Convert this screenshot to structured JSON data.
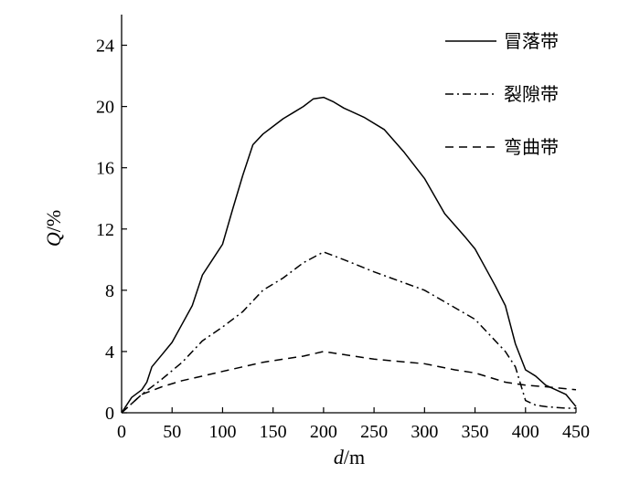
{
  "chart_data": {
    "type": "line",
    "xlabel_symbol": "d",
    "xlabel_unit": "/m",
    "ylabel_symbol": "Q",
    "ylabel_unit": "/%",
    "xlim": [
      0,
      450
    ],
    "ylim": [
      0,
      26
    ],
    "xticks": [
      0,
      50,
      100,
      150,
      200,
      250,
      300,
      350,
      400,
      450
    ],
    "yticks": [
      0,
      4,
      8,
      12,
      16,
      20,
      24
    ],
    "grid": false,
    "legend_position": "top-right",
    "series": [
      {
        "name": "冒落带",
        "style": "solid",
        "x": [
          0,
          10,
          20,
          25,
          30,
          40,
          50,
          60,
          70,
          80,
          90,
          100,
          110,
          120,
          130,
          140,
          150,
          160,
          170,
          180,
          190,
          200,
          210,
          220,
          240,
          260,
          280,
          300,
          320,
          340,
          350,
          360,
          370,
          380,
          390,
          400,
          405,
          410,
          420,
          430,
          440,
          450
        ],
        "y": [
          0,
          1.0,
          1.5,
          2.0,
          3.0,
          3.8,
          4.6,
          5.8,
          7.0,
          9.0,
          10.0,
          11.0,
          13.3,
          15.5,
          17.5,
          18.2,
          18.7,
          19.2,
          19.6,
          20.0,
          20.5,
          20.6,
          20.3,
          19.9,
          19.3,
          18.5,
          17.0,
          15.3,
          13.0,
          11.5,
          10.7,
          9.5,
          8.3,
          7.0,
          4.5,
          2.8,
          2.6,
          2.4,
          1.8,
          1.5,
          1.2,
          0.4
        ]
      },
      {
        "name": "裂隙带",
        "style": "dashdot",
        "x": [
          0,
          20,
          40,
          60,
          80,
          100,
          120,
          140,
          160,
          180,
          200,
          220,
          250,
          300,
          350,
          380,
          390,
          400,
          410,
          420,
          440,
          450
        ],
        "y": [
          0,
          1.2,
          2.2,
          3.3,
          4.7,
          5.6,
          6.6,
          8.0,
          8.8,
          9.8,
          10.5,
          10.0,
          9.2,
          8.0,
          6.1,
          4.0,
          3.0,
          0.8,
          0.5,
          0.4,
          0.3,
          0.3
        ]
      },
      {
        "name": "弯曲带",
        "style": "dashed",
        "x": [
          0,
          20,
          40,
          60,
          80,
          100,
          120,
          140,
          160,
          180,
          200,
          220,
          250,
          300,
          330,
          350,
          380,
          400,
          420,
          450
        ],
        "y": [
          0,
          1.2,
          1.7,
          2.1,
          2.4,
          2.7,
          3.0,
          3.3,
          3.5,
          3.7,
          4.0,
          3.8,
          3.5,
          3.2,
          2.8,
          2.6,
          2.0,
          1.8,
          1.7,
          1.5
        ]
      }
    ]
  }
}
